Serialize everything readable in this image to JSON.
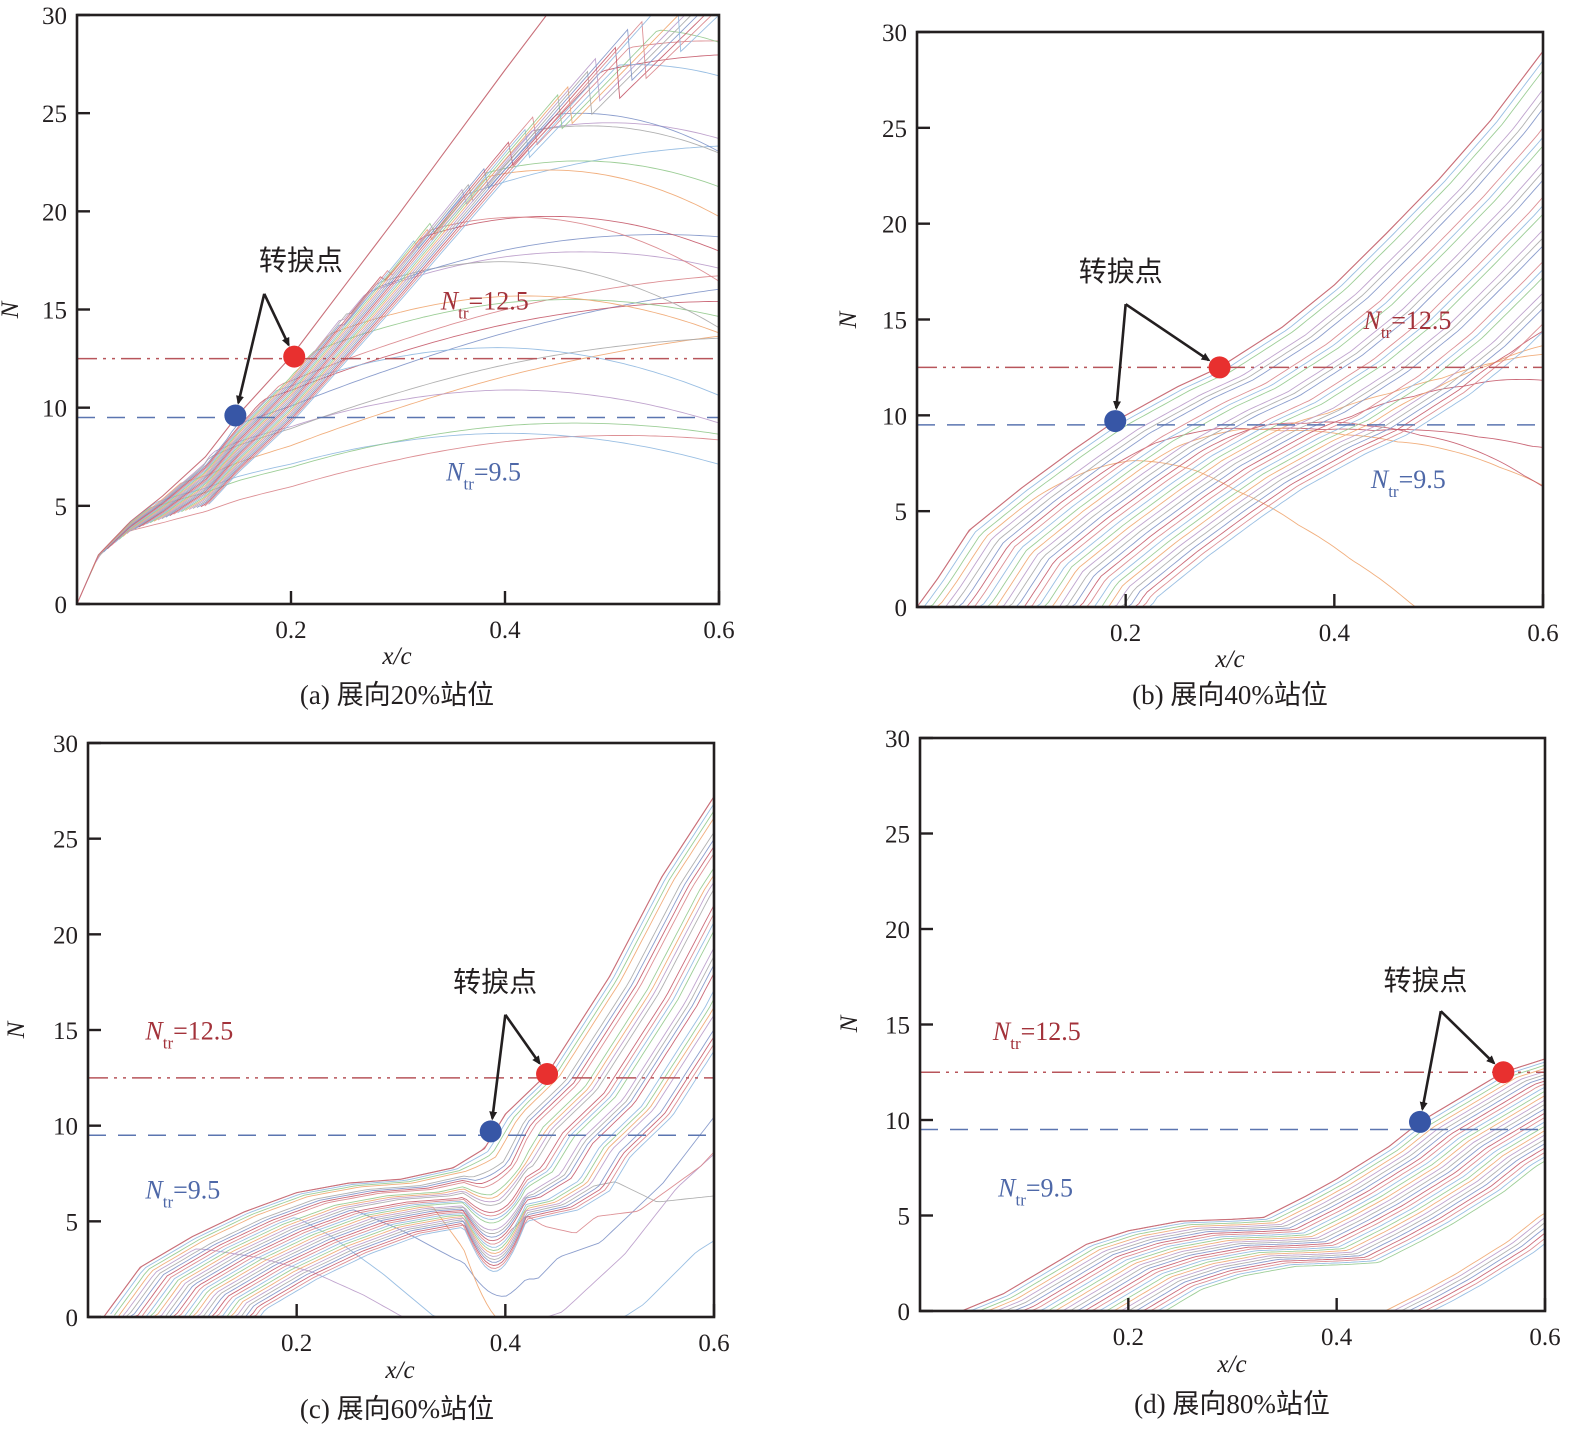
{
  "figure": {
    "annotation_label": "转捩点",
    "colors": {
      "frame": "#231f20",
      "red_threshold": "#b8555b",
      "red_text": "#a3323a",
      "blue_threshold": "#5b75b0",
      "blue_text": "#4e68a8",
      "red_point": "#e8302f",
      "blue_point": "#3756a6",
      "curve_palette": [
        "#d9848a",
        "#8fb8e0",
        "#92c98c",
        "#f0a670",
        "#b99ac9",
        "#a8a8a8",
        "#7f93c8",
        "#c55a6a"
      ]
    }
  },
  "chart_data": [
    {
      "id": "a",
      "type": "line",
      "caption": "(a) 展向20%站位",
      "xlabel": "x/c",
      "ylabel": "N",
      "xlim": [
        0,
        0.6
      ],
      "ylim": [
        0,
        30
      ],
      "xticks": [
        0.2,
        0.4,
        0.6
      ],
      "yticks": [
        0,
        5,
        10,
        15,
        20,
        25,
        30
      ],
      "thresholds": [
        {
          "name": "N_tr=12.5",
          "value": 12.5,
          "style": "dash-dot-dot",
          "color": "red",
          "label_main": "N",
          "label_sub": "tr",
          "label_value": "=12.5",
          "label_pos": [
            0.34,
            15.0
          ]
        },
        {
          "name": "N_tr=9.5",
          "value": 9.5,
          "style": "dashed",
          "color": "blue",
          "label_main": "N",
          "label_sub": "tr",
          "label_value": "=9.5",
          "label_pos": [
            0.345,
            6.3
          ]
        }
      ],
      "transition_points": [
        {
          "threshold": 12.5,
          "x": 0.203,
          "y": 12.6,
          "color": "red"
        },
        {
          "threshold": 9.5,
          "x": 0.148,
          "y": 9.6,
          "color": "blue"
        }
      ],
      "annotation": {
        "text_pos": [
          0.17,
          17.0
        ],
        "apex": [
          0.175,
          15.8
        ]
      },
      "envelope": [
        [
          0.0,
          0
        ],
        [
          0.02,
          2.5
        ],
        [
          0.05,
          4.2
        ],
        [
          0.08,
          5.5
        ],
        [
          0.12,
          7.5
        ],
        [
          0.15,
          9.6
        ],
        [
          0.2,
          12.6
        ],
        [
          0.25,
          16.2
        ],
        [
          0.3,
          19.8
        ],
        [
          0.35,
          23.5
        ],
        [
          0.4,
          27.2
        ],
        [
          0.45,
          30.8
        ]
      ],
      "curve_family": "linear_rise_then_saturate"
    },
    {
      "id": "b",
      "type": "line",
      "caption": "(b) 展向40%站位",
      "xlabel": "x/c",
      "ylabel": "N",
      "xlim": [
        0,
        0.6
      ],
      "ylim": [
        0,
        30
      ],
      "xticks": [
        0.2,
        0.4,
        0.6
      ],
      "yticks": [
        0,
        5,
        10,
        15,
        20,
        25,
        30
      ],
      "thresholds": [
        {
          "name": "N_tr=12.5",
          "value": 12.5,
          "style": "dash-dot-dot",
          "color": "red",
          "label_main": "N",
          "label_sub": "tr",
          "label_value": "=12.5",
          "label_pos": [
            0.428,
            14.5
          ]
        },
        {
          "name": "N_tr=9.5",
          "value": 9.5,
          "style": "dashed",
          "color": "blue",
          "label_main": "N",
          "label_sub": "tr",
          "label_value": "=9.5",
          "label_pos": [
            0.435,
            6.2
          ]
        }
      ],
      "transition_points": [
        {
          "threshold": 12.5,
          "x": 0.29,
          "y": 12.5,
          "color": "red"
        },
        {
          "threshold": 9.5,
          "x": 0.19,
          "y": 9.7,
          "color": "blue"
        }
      ],
      "annotation": {
        "text_pos": [
          0.155,
          17.0
        ],
        "apex": [
          0.2,
          15.8
        ]
      },
      "envelope": [
        [
          0.0,
          0
        ],
        [
          0.02,
          1.5
        ],
        [
          0.05,
          4.0
        ],
        [
          0.1,
          6.2
        ],
        [
          0.15,
          8.2
        ],
        [
          0.19,
          9.7
        ],
        [
          0.25,
          11.5
        ],
        [
          0.29,
          12.5
        ],
        [
          0.35,
          14.6
        ],
        [
          0.4,
          16.8
        ],
        [
          0.45,
          19.5
        ],
        [
          0.5,
          22.3
        ],
        [
          0.55,
          25.4
        ],
        [
          0.6,
          29.0
        ]
      ],
      "curve_family": "convex_growth"
    },
    {
      "id": "c",
      "type": "line",
      "caption": "(c) 展向60%站位",
      "xlabel": "x/c",
      "ylabel": "N",
      "xlim": [
        0,
        0.6
      ],
      "ylim": [
        0,
        30
      ],
      "xticks": [
        0.2,
        0.4,
        0.6
      ],
      "yticks": [
        0,
        5,
        10,
        15,
        20,
        25,
        30
      ],
      "thresholds": [
        {
          "name": "N_tr=12.5",
          "value": 12.5,
          "style": "dash-dot-dot",
          "color": "red",
          "label_main": "N",
          "label_sub": "tr",
          "label_value": "=12.5",
          "label_pos": [
            0.055,
            14.5
          ]
        },
        {
          "name": "N_tr=9.5",
          "value": 9.5,
          "style": "dashed",
          "color": "blue",
          "label_main": "N",
          "label_sub": "tr",
          "label_value": "=9.5",
          "label_pos": [
            0.055,
            6.2
          ]
        }
      ],
      "transition_points": [
        {
          "threshold": 12.5,
          "x": 0.44,
          "y": 12.7,
          "color": "red"
        },
        {
          "threshold": 9.5,
          "x": 0.386,
          "y": 9.7,
          "color": "blue"
        }
      ],
      "annotation": {
        "text_pos": [
          0.35,
          17.0
        ],
        "apex": [
          0.4,
          15.8
        ]
      },
      "envelope": [
        [
          0.015,
          0
        ],
        [
          0.05,
          2.6
        ],
        [
          0.1,
          4.2
        ],
        [
          0.15,
          5.5
        ],
        [
          0.2,
          6.5
        ],
        [
          0.25,
          7.0
        ],
        [
          0.3,
          7.2
        ],
        [
          0.35,
          7.8
        ],
        [
          0.38,
          8.8
        ],
        [
          0.4,
          10.6
        ],
        [
          0.44,
          12.7
        ],
        [
          0.5,
          17.8
        ],
        [
          0.55,
          23.0
        ],
        [
          0.6,
          27.2
        ]
      ],
      "curve_family": "two_hump_then_rise"
    },
    {
      "id": "d",
      "type": "line",
      "caption": "(d) 展向80%站位",
      "xlabel": "x/c",
      "ylabel": "N",
      "xlim": [
        0,
        0.6
      ],
      "ylim": [
        0,
        30
      ],
      "xticks": [
        0.2,
        0.4,
        0.6
      ],
      "yticks": [
        0,
        5,
        10,
        15,
        20,
        25,
        30
      ],
      "thresholds": [
        {
          "name": "N_tr=12.5",
          "value": 12.5,
          "style": "dash-dot-dot",
          "color": "red",
          "label_main": "N",
          "label_sub": "tr",
          "label_value": "=12.5",
          "label_pos": [
            0.07,
            14.2
          ]
        },
        {
          "name": "N_tr=9.5",
          "value": 9.5,
          "style": "dashed",
          "color": "blue",
          "label_main": "N",
          "label_sub": "tr",
          "label_value": "=9.5",
          "label_pos": [
            0.075,
            6.0
          ]
        }
      ],
      "transition_points": [
        {
          "threshold": 12.5,
          "x": 0.56,
          "y": 12.5,
          "color": "red"
        },
        {
          "threshold": 9.5,
          "x": 0.48,
          "y": 9.9,
          "color": "blue"
        }
      ],
      "annotation": {
        "text_pos": [
          0.445,
          16.8
        ],
        "apex": [
          0.5,
          15.7
        ]
      },
      "envelope": [
        [
          0.04,
          0
        ],
        [
          0.08,
          0.9
        ],
        [
          0.12,
          2.2
        ],
        [
          0.16,
          3.5
        ],
        [
          0.2,
          4.2
        ],
        [
          0.25,
          4.7
        ],
        [
          0.3,
          4.8
        ],
        [
          0.33,
          4.9
        ],
        [
          0.37,
          6.0
        ],
        [
          0.4,
          6.9
        ],
        [
          0.45,
          8.6
        ],
        [
          0.48,
          9.9
        ],
        [
          0.52,
          11.2
        ],
        [
          0.56,
          12.5
        ],
        [
          0.6,
          13.2
        ]
      ],
      "curve_family": "plateau_then_rise"
    }
  ]
}
